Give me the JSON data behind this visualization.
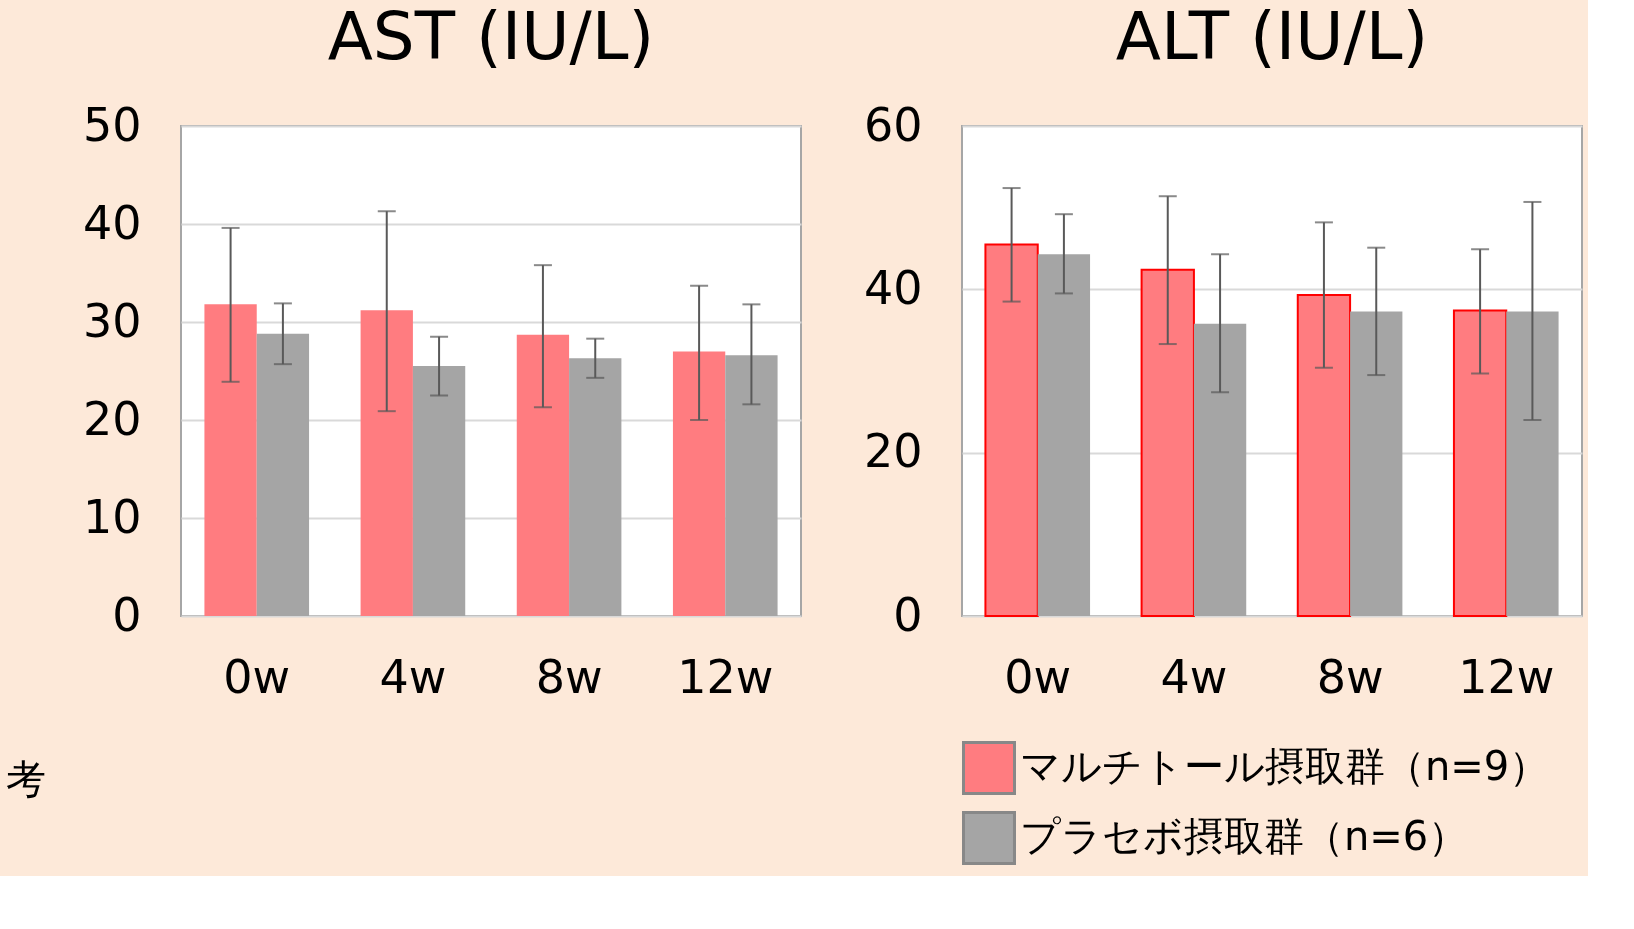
{
  "chart_data": [
    {
      "type": "bar",
      "title": "AST (IU/L)",
      "categories": [
        "0w",
        "4w",
        "8w",
        "12w"
      ],
      "series": [
        {
          "color": "#ff7c80",
          "values": [
            31.8,
            31.2,
            28.7,
            27.0
          ],
          "errors": [
            [
              23.9,
              39.6
            ],
            [
              20.9,
              41.3
            ],
            [
              21.3,
              35.8
            ],
            [
              20.0,
              33.7
            ]
          ]
        },
        {
          "color": "#a5a5a5",
          "values": [
            28.8,
            25.5,
            26.3,
            26.6
          ],
          "errors": [
            [
              25.7,
              31.9
            ],
            [
              22.5,
              28.5
            ],
            [
              24.3,
              28.3
            ],
            [
              21.6,
              31.8
            ]
          ]
        }
      ],
      "ylim": [
        0,
        50
      ],
      "yticks": [
        0,
        10,
        20,
        30,
        40,
        50
      ],
      "grid": "y",
      "legend": false,
      "annotations": [
        "考"
      ]
    },
    {
      "type": "bar",
      "title": "ALT (IU/L)",
      "categories": [
        "0w",
        "4w",
        "8w",
        "12w"
      ],
      "series": [
        {
          "name": "マルチトール摂取群（n=9）",
          "color": "#ff7c80",
          "values": [
            45.5,
            42.4,
            39.3,
            37.4
          ],
          "errors": [
            [
              38.5,
              52.4
            ],
            [
              33.3,
              51.4
            ],
            [
              30.4,
              48.2
            ],
            [
              29.7,
              44.9
            ]
          ]
        },
        {
          "name": "プラセボ摂取群（n=6）",
          "color": "#a5a5a5",
          "values": [
            44.3,
            35.8,
            37.3,
            37.3
          ],
          "errors": [
            [
              39.5,
              49.2
            ],
            [
              27.4,
              44.3
            ],
            [
              29.5,
              45.1
            ],
            [
              24.0,
              50.7
            ]
          ]
        }
      ],
      "ylim": [
        0,
        60
      ],
      "yticks": [
        0,
        20,
        40,
        60
      ],
      "grid": "y",
      "legend": "bottom"
    }
  ]
}
